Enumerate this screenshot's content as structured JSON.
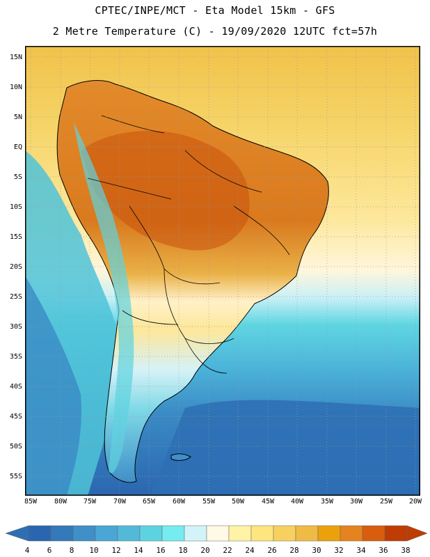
{
  "header": {
    "title_line1": "CPTEC/INPE/MCT -  Eta Model 15km - GFS",
    "title_line2": "2 Metre Temperature (C) - 19/09/2020 12UTC fct=57h"
  },
  "map": {
    "lat_labels": [
      "15N",
      "10N",
      "5N",
      "EQ",
      "5S",
      "10S",
      "15S",
      "20S",
      "25S",
      "30S",
      "35S",
      "40S",
      "45S",
      "50S",
      "55S"
    ],
    "lon_labels": [
      "85W",
      "80W",
      "75W",
      "70W",
      "65W",
      "60W",
      "55W",
      "50W",
      "45W",
      "40W",
      "35W",
      "30W",
      "25W",
      "20W"
    ]
  },
  "colorbar": {
    "values": [
      "4",
      "6",
      "8",
      "10",
      "12",
      "14",
      "16",
      "18",
      "20",
      "22",
      "24",
      "26",
      "28",
      "30",
      "32",
      "34",
      "36",
      "38"
    ],
    "colors": [
      "#2a66b0",
      "#3479b9",
      "#3f8fc8",
      "#4aa6d6",
      "#52bad8",
      "#5ed3e0",
      "#74ecf0",
      "#d2f4f9",
      "#fff9e6",
      "#fff3a6",
      "#ffe57e",
      "#f7d060",
      "#efbb45",
      "#eaa10c",
      "#e5831f",
      "#d85d0e",
      "#bf3c04"
    ],
    "under_color": "#2e6fb4",
    "over_color": "#bf3c04"
  }
}
